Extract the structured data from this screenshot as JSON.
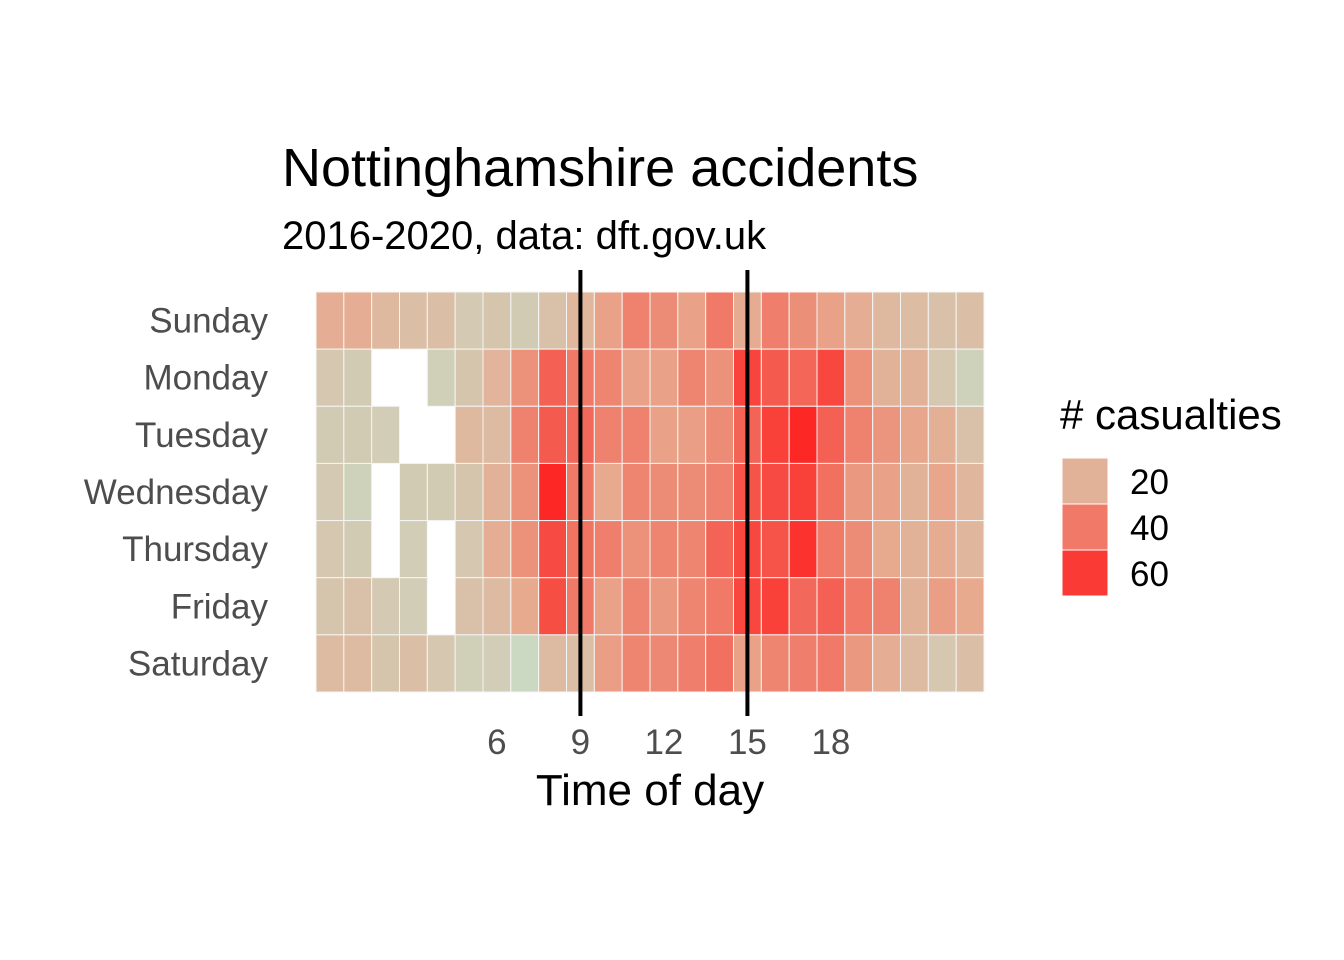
{
  "chart_data": {
    "type": "heatmap",
    "title": "Nottinghamshire accidents",
    "subtitle": "2016-2020, data: dft.gov.uk",
    "xlabel": "Time of day",
    "ylabel": "",
    "x": [
      0,
      1,
      2,
      3,
      4,
      5,
      6,
      7,
      8,
      9,
      10,
      11,
      12,
      13,
      14,
      15,
      16,
      17,
      18,
      19,
      20,
      21,
      22,
      23
    ],
    "x_ticks": [
      6,
      9,
      12,
      15,
      18
    ],
    "categories": [
      "Sunday",
      "Monday",
      "Tuesday",
      "Wednesday",
      "Thursday",
      "Friday",
      "Saturday"
    ],
    "values": [
      [
        22,
        22,
        17,
        14,
        14,
        9,
        11,
        8,
        13,
        18,
        27,
        37,
        34,
        27,
        40,
        23,
        38,
        33,
        27,
        22,
        17,
        15,
        13,
        14
      ],
      [
        10,
        8,
        null,
        null,
        6,
        11,
        19,
        32,
        48,
        40,
        36,
        27,
        27,
        36,
        32,
        57,
        50,
        46,
        56,
        32,
        20,
        20,
        10,
        5
      ],
      [
        8,
        8,
        7,
        null,
        null,
        17,
        16,
        37,
        50,
        45,
        37,
        37,
        27,
        28,
        34,
        47,
        58,
        66,
        48,
        37,
        31,
        25,
        21,
        13
      ],
      [
        9,
        5,
        null,
        8,
        8,
        11,
        20,
        32,
        66,
        40,
        24,
        36,
        34,
        34,
        37,
        52,
        55,
        58,
        43,
        30,
        27,
        20,
        25,
        18
      ],
      [
        10,
        8,
        null,
        7,
        null,
        10,
        22,
        32,
        55,
        42,
        38,
        32,
        36,
        36,
        47,
        56,
        52,
        63,
        40,
        34,
        24,
        20,
        23,
        18
      ],
      [
        11,
        13,
        9,
        7,
        null,
        13,
        16,
        24,
        54,
        40,
        27,
        36,
        30,
        36,
        40,
        56,
        58,
        45,
        48,
        40,
        37,
        20,
        28,
        24
      ],
      [
        16,
        16,
        11,
        14,
        10,
        6,
        7,
        2,
        16,
        14,
        28,
        36,
        35,
        38,
        43,
        27,
        36,
        38,
        40,
        30,
        22,
        16,
        10,
        14
      ]
    ],
    "vlines_x": [
      9,
      15
    ],
    "legend": {
      "title": "# casualties",
      "breaks": [
        20,
        40,
        60
      ],
      "placement": "right"
    },
    "color_scale": {
      "low": "#c8dcc7",
      "mid": "#e8a98e",
      "high": "#ff1c1c",
      "min": 0,
      "max": 70
    },
    "tile_border": "#f5f5f5",
    "vline_color": "#000000"
  }
}
